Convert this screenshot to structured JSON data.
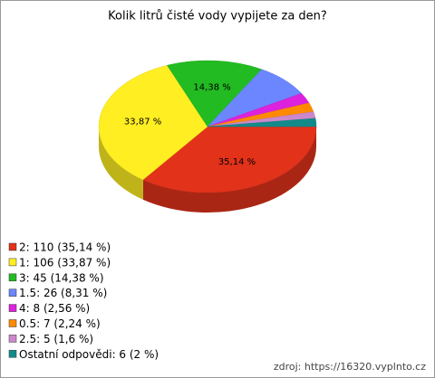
{
  "chart_data": {
    "type": "pie",
    "title": "Kolik litrů čisté vody vypijete za den?",
    "categories": [
      "2: 110 (35,14 %)",
      "1: 106 (33,87 %)",
      "3: 45 (14,38 %)",
      "1.5: 26 (8,31 %)",
      "4: 8 (2,56 %)",
      "0.5: 7 (2,24 %)",
      "2.5: 5 (1,6 %)",
      "Ostatní odpovědi: 6 (2 %)"
    ],
    "values": [
      35.14,
      33.87,
      14.38,
      8.31,
      2.56,
      2.24,
      1.6,
      2
    ],
    "value_labels": [
      "35,14 %",
      "33,87 %",
      "14,38 %",
      null,
      null,
      null,
      null,
      null
    ],
    "colors": [
      "#e2321a",
      "#ffee22",
      "#22bb22",
      "#6b86ff",
      "#dd22dd",
      "#ff8a00",
      "#cc88cc",
      "#138a8a"
    ],
    "source": "zdroj: https://16320.vyplnto.cz"
  }
}
